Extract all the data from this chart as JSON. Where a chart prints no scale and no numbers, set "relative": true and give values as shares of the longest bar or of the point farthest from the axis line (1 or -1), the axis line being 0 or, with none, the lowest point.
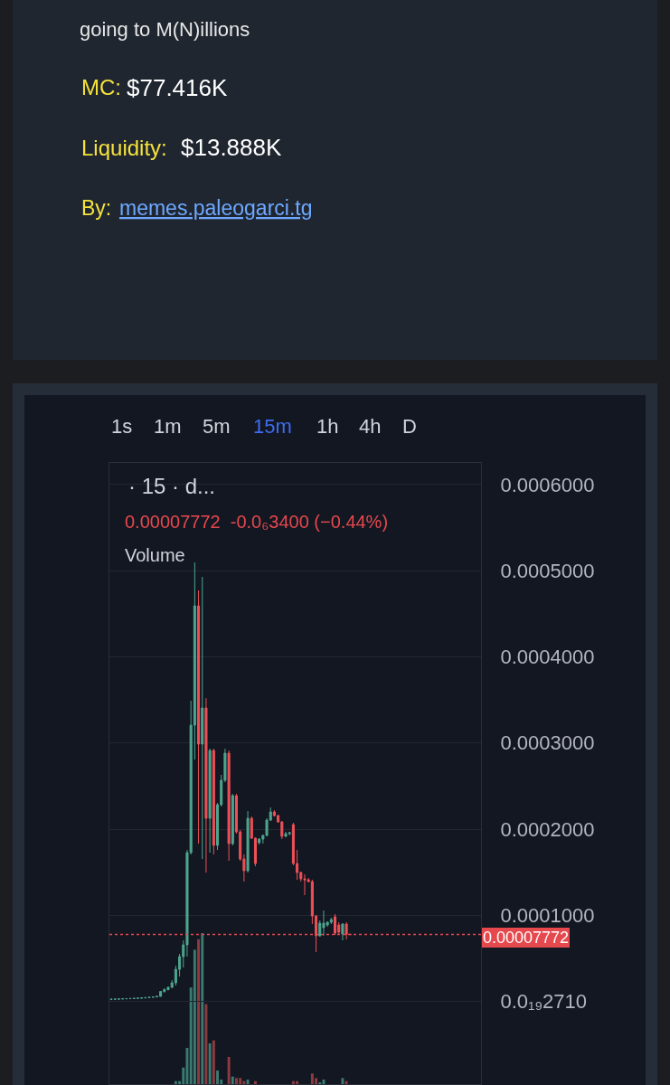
{
  "chart_data": [
    {
      "type": "candlestick",
      "title": "going to M(N)illions",
      "subtitle": "· 15 · d...",
      "annotations": [
        "MC:",
        "$77.416K",
        "Liquidity:",
        "$13.888K",
        "By:",
        "memes.paleogarci.tg",
        "1s",
        "1m",
        "5m",
        "15m",
        "1h",
        "4h",
        "D",
        "0.00007772  -0.0₆3400 (−0.44%)"
      ],
      "categories": [
        null,
        null,
        null,
        null,
        null,
        null,
        null,
        null,
        null,
        null,
        null,
        null,
        null,
        null,
        null,
        null,
        null,
        null,
        null,
        null,
        null,
        null,
        null,
        null,
        null,
        null,
        null,
        null,
        null,
        null,
        null,
        null,
        null,
        null,
        null,
        null,
        null,
        null,
        null,
        null,
        null,
        null,
        null,
        null,
        null,
        null,
        null,
        null,
        null,
        null,
        null,
        null,
        null,
        null,
        null,
        null,
        null,
        null,
        null,
        null,
        null,
        null,
        null,
        null,
        null,
        null,
        null,
        null,
        null,
        null,
        null,
        null,
        null,
        null,
        null,
        null,
        null,
        null,
        null,
        null,
        null,
        null,
        null,
        null,
        null,
        null,
        null,
        null,
        null,
        null,
        null,
        null,
        null,
        null,
        null,
        null,
        null,
        null
      ],
      "ohlc": [
        [
          2.5e-06,
          2.8e-06,
          2.4e-06,
          2.7e-06
        ],
        [
          2.7e-06,
          2.9e-06,
          2.6e-06,
          2.8e-06
        ],
        [
          2.8e-06,
          3.1e-06,
          2.7e-06,
          3e-06
        ],
        [
          3e-06,
          3.3e-06,
          2.9e-06,
          3.2e-06
        ],
        [
          3.2e-06,
          3.4e-06,
          3.1e-06,
          3.3e-06
        ],
        [
          3.3e-06,
          3.6e-06,
          3.2e-06,
          3.5e-06
        ],
        [
          3.5e-06,
          3.8e-06,
          3.4e-06,
          3.7e-06
        ],
        [
          3.7e-06,
          4e-06,
          3.6e-06,
          3.9e-06
        ],
        [
          3.9e-06,
          4.3e-06,
          3.8e-06,
          4.2e-06
        ],
        [
          4.2e-06,
          4.6e-06,
          4.1e-06,
          4.5e-06
        ],
        [
          4.5e-06,
          5e-06,
          4.4e-06,
          4.9e-06
        ],
        [
          4.9e-06,
          5.5e-06,
          4.8e-06,
          5.4e-06
        ],
        [
          5.4e-06,
          6.2e-06,
          5.3e-06,
          6e-06
        ],
        [
          6e-06,
          1.23e-05,
          5.9e-06,
          1.17e-05
        ],
        [
          1.17e-05,
          1.54e-05,
          1.02e-05,
          1.38e-05
        ],
        [
          1.38e-05,
          1.75e-05,
          1.3e-05,
          1.65e-05
        ],
        [
          1.65e-05,
          2.49e-05,
          1.55e-05,
          2.17e-05
        ],
        [
          2.17e-05,
          4.16e-05,
          1.86e-05,
          3.74e-05
        ],
        [
          3.74e-05,
          5.53e-05,
          2.91e-05,
          5.21e-05
        ],
        [
          5.21e-05,
          7.1e-05,
          3.95e-05,
          6.58e-05
        ],
        [
          6.58e-05,
          0.0001759,
          5.21e-05,
          0.0001728
        ],
        [
          0.0001728,
          0.000349,
          0.0001707,
          0.0003207
        ],
        [
          0.0003207,
          0.0005095,
          0.0002808,
          0.0004591
        ],
        [
          0.0004591,
          0.000477,
          0.0001833,
          0.0002987
        ],
        [
          0.0002987,
          0.0004927,
          0.0001654,
          0.0003406
        ],
        [
          0.0003406,
          0.0003521,
          0.0001497,
          0.0002126
        ],
        [
          0.0002126,
          0.0002934,
          0.0001728,
          0.0002913
        ],
        [
          0.0002913,
          0.0002934,
          0.0001707,
          0.0001812
        ],
        [
          0.0001812,
          0.0002305,
          0.0001759,
          0.0002284
        ],
        [
          0.0002284,
          0.000263,
          0.0002263,
          0.0002567
        ],
        [
          0.0002567,
          0.0002934,
          0.0002546,
          0.0002882
        ],
        [
          0.0002882,
          0.0002913,
          0.0001633,
          0.0001833
        ],
        [
          0.0001833,
          0.000241,
          0.0001812,
          0.0002389
        ],
        [
          0.0002389,
          0.000241,
          0.0001948,
          0.0001969
        ],
        [
          0.0001969,
          0.000199,
          0.0001633,
          0.0001654
        ],
        [
          0.0001654,
          0.0001707,
          0.0001392,
          0.0001518
        ],
        [
          0.0001518,
          0.000221,
          0.0001497,
          0.0002126
        ],
        [
          0.0002126,
          0.0002147,
          0.0001885,
          0.0001896
        ],
        [
          0.0001896,
          0.0001906,
          0.000157,
          0.0001602
        ],
        [
          0.0001843,
          0.0001896,
          0.0001822,
          0.0001885
        ],
        [
          0.0001885,
          0.0001938,
          0.0001833,
          0.0001927
        ],
        [
          0.0001927,
          0.0002126,
          0.0001917,
          0.0002105
        ],
        [
          0.0002105,
          0.0002252,
          0.0002095,
          0.00022
        ],
        [
          0.00022,
          0.0002221,
          0.0002147,
          0.0002158
        ],
        [
          0.0002158,
          0.0002168,
          0.0002074,
          0.0002084
        ],
        [
          0.0002084,
          0.0002095,
          0.0001885,
          0.0001917
        ],
        [
          0.0001917,
          0.0001969,
          0.0001906,
          0.0001948
        ],
        [
          0.0001948,
          0.0001969,
          0.0001927,
          0.0001958
        ],
        [
          0.0002053,
          0.0002074,
          0.0001581,
          0.0001602
        ],
        [
          0.0001602,
          0.0001759,
          0.0001413,
          0.0001497
        ],
        [
          0.0001497,
          0.0001507,
          0.0001392,
          0.0001424
        ],
        [
          0.0001424,
          0.0001476,
          0.0001235,
          0.0001413
        ],
        [
          0.0001413,
          0.0001434,
          0.0001382,
          0.0001392
        ],
        [
          0.0001392,
          0.0001413,
          8.99e-05,
          9.93e-05
        ],
        [
          9.93e-05,
          0.0001004,
          5.74e-05,
          7.63e-05
        ],
        [
          7.63e-05,
          9.41e-05,
          7.52e-05,
          9.09e-05
        ],
        [
          8.57e-05,
          0.0001056,
          7.63e-05,
          9.09e-05
        ],
        [
          8.88e-05,
          9.3e-05,
          8.68e-05,
          9.2e-05
        ],
        [
          9.2e-05,
          9.72e-05,
          8.99e-05,
          9.51e-05
        ],
        [
          9.83e-05,
          0.0001014,
          7.73e-05,
          7.94e-05
        ],
        [
          8.88e-05,
          9.2e-05,
          7.84e-05,
          8.05e-05
        ],
        [
          7.84e-05,
          9.09e-05,
          7.1e-05,
          8.99e-05
        ],
        [
          8.99e-05,
          9.2e-05,
          7.21e-05,
          7.806e-05
        ],
        [
          7.806e-05,
          7.806e-05,
          7.772e-05,
          7.772e-05
        ],
        null,
        null,
        null,
        null,
        null,
        null,
        null,
        null,
        null,
        null,
        null,
        null,
        null,
        null,
        null,
        null,
        null,
        null,
        null,
        null,
        null,
        null,
        null,
        null,
        null,
        null,
        null,
        null,
        null,
        null,
        null,
        null,
        null,
        null
      ],
      "colors": [
        "#4ea68e",
        "#4ea68e",
        "#4ea68e",
        "#4ea68e",
        "#4ea68e",
        "#4ea68e",
        "#4ea68e",
        "#4ea68e",
        "#4ea68e",
        "#4ea68e",
        "#4ea68e",
        "#4ea68e",
        "#4ea68e",
        "#4ea68e",
        "#4ea68e",
        "#4ea68e",
        "#4ea68e",
        "#4ea68e",
        "#4ea68e",
        "#4ea68e",
        "#4ea68e",
        "#4ea68e",
        "#4ea68e",
        "#ee5157",
        "#4ea68e",
        "#ee5157",
        "#4ea68e",
        "#ee5157",
        "#4ea68e",
        "#4ea68e",
        "#4ea68e",
        "#ee5157",
        "#4ea68e",
        "#ee5157",
        "#ee5157",
        "#ee5157",
        "#4ea68e",
        "#ee5157",
        "#ee5157",
        "#4ea68e",
        "#4ea68e",
        "#4ea68e",
        "#4ea68e",
        "#ee5157",
        "#ee5157",
        "#ee5157",
        "#4ea68e",
        "#4ea68e",
        "#ee5157",
        "#ee5157",
        "#ee5157",
        "#ee5157",
        "#ee5157",
        "#ee5157",
        "#ee5157",
        "#4ea68e",
        "#4ea68e",
        "#4ea68e",
        "#4ea68e",
        "#ee5157",
        "#ee5157",
        "#4ea68e",
        "#ee5157",
        "#ee5157",
        null,
        null,
        null,
        null,
        null,
        null,
        null,
        null,
        null,
        null,
        null,
        null,
        null,
        null,
        null,
        null,
        null,
        null,
        null,
        null,
        null,
        null,
        null,
        null,
        null,
        null,
        null,
        null,
        null,
        null,
        null,
        null,
        null,
        null
      ],
      "ylim": [
        -9.58e-05,
        0.000625
      ],
      "yticks": [
        {
          "value": 0,
          "label": "0.0₁₉2710"
        },
        {
          "value": 0.0001,
          "label": "0.0001000"
        },
        {
          "value": 0.0002,
          "label": "0.0002000"
        },
        {
          "value": 0.0003,
          "label": "0.0003000"
        },
        {
          "value": 0.0004,
          "label": "0.0004000"
        },
        {
          "value": 0.0005,
          "label": "0.0005000"
        },
        {
          "value": 0.0006,
          "label": "0.0006000"
        }
      ],
      "grid": "y",
      "ref_lines": [
        {
          "axis": "y",
          "value": 7.772e-05,
          "label": "0.00007772",
          "color": "#e5484d",
          "line_style": "dotted"
        }
      ]
    },
    {
      "type": "bar",
      "title": "Volume",
      "relative": true,
      "categories": [
        null,
        null,
        null,
        null,
        null,
        null,
        null,
        null,
        null,
        null,
        null,
        null,
        null,
        null,
        null,
        null,
        null,
        null,
        null,
        null,
        null,
        null,
        null,
        null,
        null,
        null,
        null,
        null,
        null,
        null,
        null,
        null,
        null,
        null,
        null,
        null,
        null,
        null,
        null,
        null,
        null,
        null,
        null,
        null,
        null,
        null,
        null,
        null,
        null,
        null,
        null,
        null,
        null,
        null,
        null,
        null,
        null,
        null,
        null,
        null,
        null,
        null,
        null,
        null,
        null,
        null,
        null,
        null,
        null,
        null,
        null,
        null,
        null,
        null,
        null,
        null,
        null,
        null,
        null,
        null,
        null,
        null,
        null,
        null,
        null,
        null,
        null,
        null,
        null,
        null,
        null,
        null,
        null,
        null,
        null,
        null,
        null,
        null
      ],
      "values": [
        null,
        null,
        null,
        null,
        null,
        null,
        null,
        null,
        null,
        null,
        null,
        null,
        null,
        null,
        null,
        null,
        null,
        0.02,
        0.02,
        0.11,
        0.24,
        0.64,
        0.89,
        0.96,
        1,
        0.53,
        0.27,
        0.29,
        0.09,
        0.03,
        null,
        0.18,
        0.05,
        0.04,
        0.04,
        0.02,
        0.03,
        null,
        0.02,
        null,
        null,
        null,
        null,
        null,
        null,
        null,
        null,
        null,
        0.02,
        0.02,
        null,
        null,
        null,
        0.07,
        0.04,
        0.01,
        0.03,
        null,
        null,
        null,
        null,
        0.04,
        0.02,
        null,
        null,
        null,
        null,
        null,
        null,
        null,
        null,
        null,
        null,
        null,
        null,
        null,
        null,
        null,
        null,
        null,
        null,
        null,
        null,
        null,
        null,
        null,
        null,
        null,
        null,
        null,
        null,
        null,
        null,
        null,
        null,
        null,
        null,
        null
      ],
      "colors": [
        "#3a7a70",
        "#3a7a70",
        "#3a7a70",
        "#3a7a70",
        "#3a7a70",
        "#3a7a70",
        "#3a7a70",
        "#3a7a70",
        "#3a7a70",
        "#3a7a70",
        "#3a7a70",
        "#3a7a70",
        "#3a7a70",
        "#3a7a70",
        "#3a7a70",
        "#3a7a70",
        "#3a7a70",
        "#3a7a70",
        "#3a7a70",
        "#3a7a70",
        "#3a7a70",
        "#3a7a70",
        "#3a7a70",
        "#8c3c41",
        "#3a7a70",
        "#8c3c41",
        "#3a7a70",
        "#8c3c41",
        "#3a7a70",
        "#3a7a70",
        "#3a7a70",
        "#8c3c41",
        "#3a7a70",
        "#8c3c41",
        "#8c3c41",
        "#8c3c41",
        "#3a7a70",
        "#8c3c41",
        "#8c3c41",
        "#3a7a70",
        "#3a7a70",
        "#3a7a70",
        "#3a7a70",
        "#8c3c41",
        "#8c3c41",
        "#8c3c41",
        "#3a7a70",
        "#3a7a70",
        "#8c3c41",
        "#8c3c41",
        "#8c3c41",
        "#8c3c41",
        "#8c3c41",
        "#8c3c41",
        "#8c3c41",
        "#3a7a70",
        "#3a7a70",
        "#3a7a70",
        "#3a7a70",
        "#8c3c41",
        "#8c3c41",
        "#3a7a70",
        "#8c3c41",
        "#8c3c41",
        null,
        null,
        null,
        null,
        null,
        null,
        null,
        null,
        null,
        null,
        null,
        null,
        null,
        null,
        null,
        null,
        null,
        null,
        null,
        null,
        null,
        null,
        null,
        null,
        null,
        null,
        null,
        null,
        null,
        null,
        null,
        null,
        null,
        null
      ]
    }
  ]
}
